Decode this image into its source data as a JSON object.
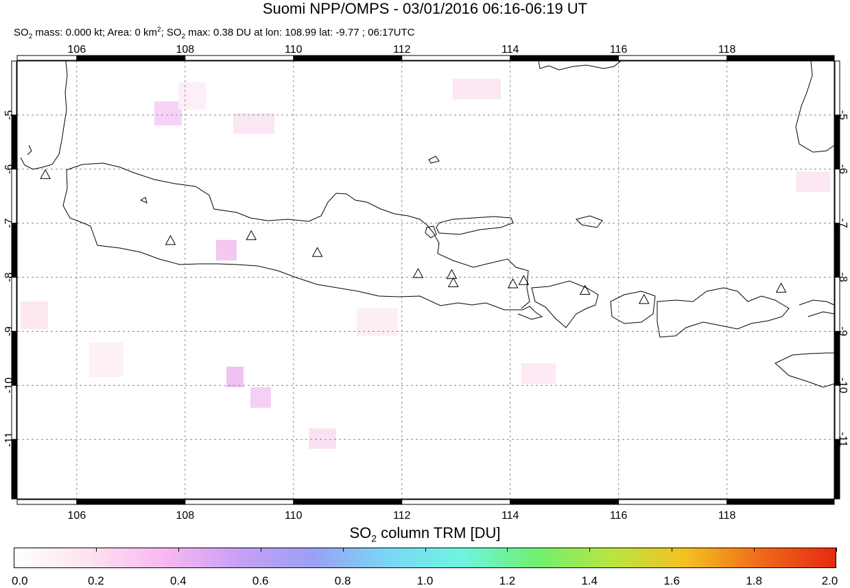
{
  "title": "Suomi NPP/OMPS - 03/01/2016 06:16-06:19 UT",
  "subtitle": {
    "p1": "SO",
    "p1_sub": "2",
    "p2": " mass: 0.000 kt; Area: 0 km",
    "p2_sup": "2",
    "p3": "; SO",
    "p3_sub": "2",
    "p4": " max: 0.38 DU at lon: 108.99 lat: -9.77 ; 06:17UTC"
  },
  "map": {
    "lon_range": [
      104.9,
      119.98
    ],
    "lat_range": [
      -12.1,
      -4.0
    ],
    "lon_ticks": [
      "106",
      "108",
      "110",
      "112",
      "114",
      "116",
      "118"
    ],
    "lat_ticks": [
      "-5",
      "-6",
      "-7",
      "-8",
      "-9",
      "-10",
      "-11"
    ],
    "volcano_icon": "triangle-outline",
    "volcanoes": [
      {
        "lon": 105.42,
        "lat": -6.1
      },
      {
        "lon": 107.73,
        "lat": -7.32
      },
      {
        "lon": 109.22,
        "lat": -7.23
      },
      {
        "lon": 110.44,
        "lat": -7.54
      },
      {
        "lon": 112.3,
        "lat": -7.93
      },
      {
        "lon": 112.92,
        "lat": -7.95
      },
      {
        "lon": 112.95,
        "lat": -8.1
      },
      {
        "lon": 114.05,
        "lat": -8.12
      },
      {
        "lon": 114.25,
        "lat": -8.06
      },
      {
        "lon": 115.38,
        "lat": -8.24
      },
      {
        "lon": 116.47,
        "lat": -8.41
      },
      {
        "lon": 119.0,
        "lat": -8.2
      }
    ]
  },
  "colorbar": {
    "label_pre": "SO",
    "label_sub": "2",
    "label_post": " column TRM [DU]",
    "ticks": [
      "0.0",
      "0.2",
      "0.4",
      "0.6",
      "0.8",
      "1.0",
      "1.2",
      "1.4",
      "1.6",
      "1.8",
      "2.0"
    ],
    "colors": [
      "#ffffff",
      "#fde3ef",
      "#f8b8f0",
      "#c8a0f5",
      "#9aa0f5",
      "#7ad7f5",
      "#6ef5e0",
      "#70ef70",
      "#b8e640",
      "#f5c020",
      "#ef6a1a",
      "#e62a10"
    ]
  }
}
